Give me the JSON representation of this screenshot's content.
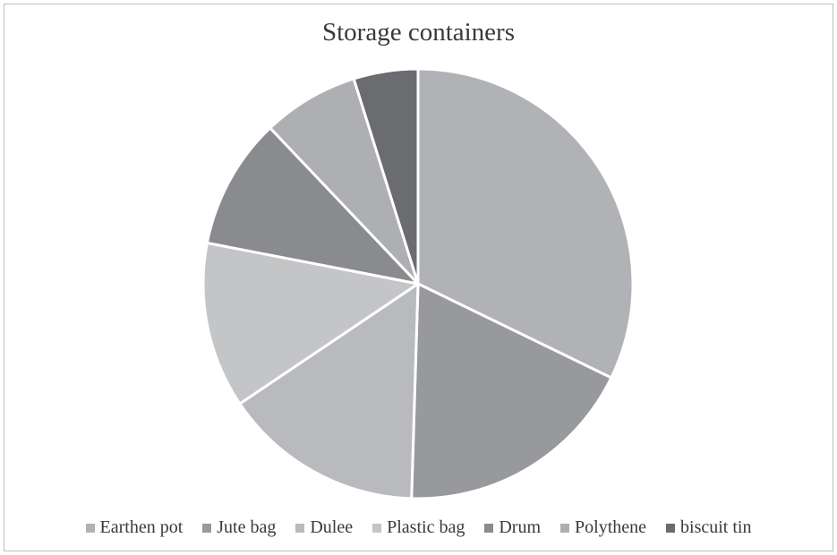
{
  "chart_data": {
    "type": "pie",
    "title": "Storage containers",
    "legend_position": "bottom",
    "categories": [
      "Earthen pot",
      "Jute bag",
      "Dulee",
      "Plastic bag",
      "Drum",
      "Polythene",
      "biscuit tin"
    ],
    "values": [
      33.3,
      18.9,
      15.6,
      12.9,
      10.2,
      7.5,
      5.0
    ],
    "colors": [
      "#b1b2b5",
      "#98999c",
      "#b9babd",
      "#c4c5c7",
      "#8a8b8e",
      "#aeafb2",
      "#6b6c70"
    ]
  }
}
